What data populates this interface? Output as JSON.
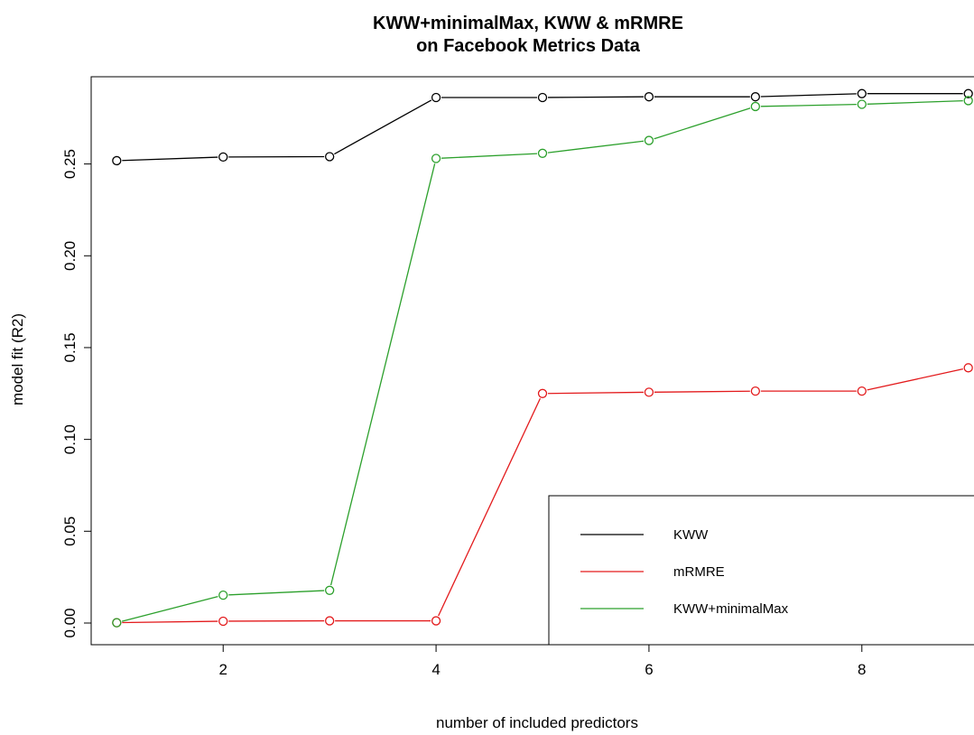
{
  "chart_data": {
    "type": "line",
    "title": [
      "KWW+minimalMax, KWW & mRMRE",
      "on Facebook Metrics Data"
    ],
    "xlabel": "number of included predictors",
    "ylabel": "model fit (R2)",
    "xlim": [
      0.76,
      9.24
    ],
    "ylim": [
      -0.0118,
      0.2975
    ],
    "xticks": [
      2,
      4,
      6,
      8
    ],
    "yticks": [
      0.0,
      0.05,
      0.1,
      0.15,
      0.2,
      0.25
    ],
    "ytick_labels": [
      "0.00",
      "0.05",
      "0.10",
      "0.15",
      "0.20",
      "0.25"
    ],
    "grid": false,
    "legend_position": "bottom-right",
    "x": [
      1,
      2,
      3,
      4,
      5,
      6,
      7,
      8,
      9
    ],
    "series": [
      {
        "name": "KWW",
        "color": "#000000",
        "values": [
          0.2518,
          0.2538,
          0.254,
          0.2862,
          0.2862,
          0.2866,
          0.2866,
          0.2883,
          0.2883
        ]
      },
      {
        "name": "mRMRE",
        "color": "#e31a1c",
        "values": [
          0.0002,
          0.001,
          0.0012,
          0.0012,
          0.125,
          0.1257,
          0.1263,
          0.1263,
          0.139
        ]
      },
      {
        "name": "KWW+minimalMax",
        "color": "#2ca02c",
        "values": [
          0.0002,
          0.0152,
          0.0178,
          0.253,
          0.2558,
          0.2628,
          0.2813,
          0.2825,
          0.2845
        ]
      }
    ]
  }
}
